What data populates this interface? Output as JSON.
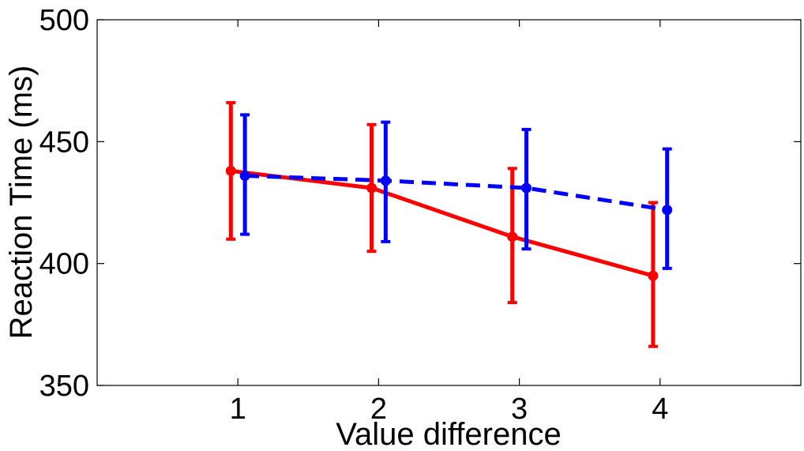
{
  "chart_data": {
    "type": "line",
    "title": "",
    "xlabel": "Value difference",
    "ylabel": "Reaction Time (ms)",
    "xlim": [
      0,
      5
    ],
    "ylim": [
      350,
      500
    ],
    "x_ticks": [
      1,
      2,
      3,
      4
    ],
    "x_tick_labels": [
      "1",
      "2",
      "3",
      "4"
    ],
    "y_ticks": [
      350,
      400,
      450,
      500
    ],
    "y_tick_labels": [
      "350",
      "400",
      "450",
      "500"
    ],
    "grid": false,
    "legend": "none",
    "series": [
      {
        "color": "#ff0000",
        "line_style": "solid",
        "x": [
          0.95,
          1.95,
          2.95,
          3.95
        ],
        "values": [
          438,
          431,
          411,
          395
        ],
        "error_low": [
          410,
          405,
          384,
          366
        ],
        "error_high": [
          466,
          457,
          439,
          425
        ]
      },
      {
        "color": "#0000ff",
        "line_style": "dashed",
        "x": [
          1.05,
          2.05,
          3.05,
          4.05
        ],
        "values": [
          436,
          434,
          431,
          422
        ],
        "error_low": [
          412,
          409,
          406,
          398
        ],
        "error_high": [
          461,
          458,
          455,
          447
        ]
      }
    ]
  }
}
